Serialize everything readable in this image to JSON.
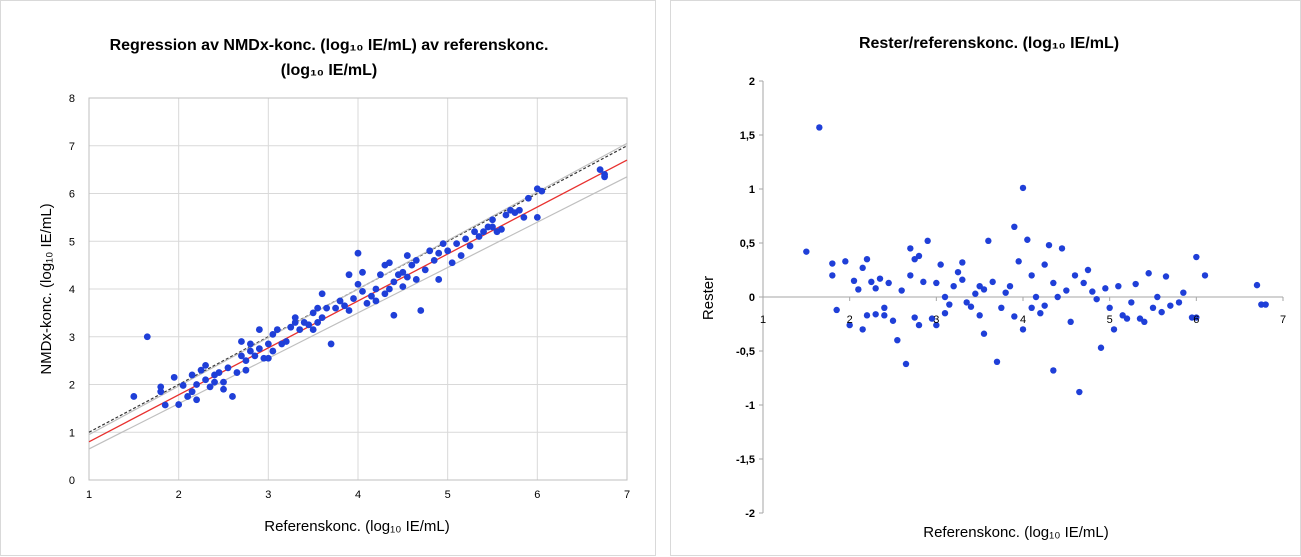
{
  "chart_data": [
    {
      "type": "scatter",
      "title": "Regression av NMDx-konc. (log₁₀ IE/mL) av referenskonc.",
      "title_line2": "(log₁₀ IE/mL)",
      "xlabel": "Referenskonc. (log₁₀ IE/mL)",
      "ylabel": "NMDx-konc. (log₁₀ IE/mL)",
      "xlim": [
        1,
        7
      ],
      "ylim": [
        0,
        8
      ],
      "xticks": [
        "1",
        "2",
        "3",
        "4",
        "5",
        "6",
        "7"
      ],
      "yticks": [
        "0",
        "1",
        "2",
        "3",
        "4",
        "5",
        "6",
        "7",
        "8"
      ],
      "grid": true,
      "point_color": "#1f3fd8",
      "lines": [
        {
          "kind": "identity-dashed",
          "color": "#333333",
          "points": [
            [
              1,
              1
            ],
            [
              7,
              7
            ]
          ]
        },
        {
          "kind": "upper-bound",
          "color": "#bfbfbf",
          "points": [
            [
              1,
              0.95
            ],
            [
              7,
              7.05
            ]
          ]
        },
        {
          "kind": "regression",
          "color": "#e8312f",
          "points": [
            [
              1,
              0.8
            ],
            [
              7,
              6.7
            ]
          ]
        },
        {
          "kind": "lower-bound",
          "color": "#bfbfbf",
          "points": [
            [
              1,
              0.65
            ],
            [
              7,
              6.35
            ]
          ]
        }
      ],
      "points": [
        [
          1.5,
          1.75
        ],
        [
          1.65,
          3.0
        ],
        [
          1.8,
          1.85
        ],
        [
          1.8,
          1.95
        ],
        [
          1.85,
          1.57
        ],
        [
          1.95,
          2.15
        ],
        [
          2.0,
          1.58
        ],
        [
          2.05,
          1.98
        ],
        [
          2.1,
          1.75
        ],
        [
          2.15,
          1.85
        ],
        [
          2.15,
          2.2
        ],
        [
          2.2,
          1.68
        ],
        [
          2.2,
          2.0
        ],
        [
          2.25,
          2.3
        ],
        [
          2.3,
          2.1
        ],
        [
          2.3,
          2.4
        ],
        [
          2.35,
          1.95
        ],
        [
          2.4,
          2.2
        ],
        [
          2.4,
          2.05
        ],
        [
          2.45,
          2.25
        ],
        [
          2.5,
          2.05
        ],
        [
          2.5,
          1.9
        ],
        [
          2.55,
          2.35
        ],
        [
          2.6,
          1.75
        ],
        [
          2.65,
          2.25
        ],
        [
          2.7,
          2.6
        ],
        [
          2.7,
          2.9
        ],
        [
          2.75,
          2.5
        ],
        [
          2.75,
          2.3
        ],
        [
          2.8,
          2.7
        ],
        [
          2.8,
          2.85
        ],
        [
          2.85,
          2.6
        ],
        [
          2.9,
          3.15
        ],
        [
          2.9,
          2.75
        ],
        [
          2.95,
          2.55
        ],
        [
          3.0,
          2.55
        ],
        [
          3.0,
          2.85
        ],
        [
          3.05,
          2.7
        ],
        [
          3.05,
          3.05
        ],
        [
          3.1,
          3.15
        ],
        [
          3.15,
          2.85
        ],
        [
          3.2,
          2.9
        ],
        [
          3.25,
          3.2
        ],
        [
          3.3,
          3.3
        ],
        [
          3.3,
          3.4
        ],
        [
          3.35,
          3.15
        ],
        [
          3.4,
          3.3
        ],
        [
          3.45,
          3.25
        ],
        [
          3.5,
          3.5
        ],
        [
          3.5,
          3.15
        ],
        [
          3.55,
          3.3
        ],
        [
          3.55,
          3.6
        ],
        [
          3.6,
          3.4
        ],
        [
          3.6,
          3.9
        ],
        [
          3.65,
          3.6
        ],
        [
          3.7,
          2.85
        ],
        [
          3.75,
          3.6
        ],
        [
          3.8,
          3.75
        ],
        [
          3.85,
          3.65
        ],
        [
          3.9,
          3.55
        ],
        [
          3.9,
          4.3
        ],
        [
          3.95,
          3.8
        ],
        [
          4.0,
          4.75
        ],
        [
          4.0,
          4.1
        ],
        [
          4.05,
          3.95
        ],
        [
          4.05,
          4.35
        ],
        [
          4.1,
          3.7
        ],
        [
          4.15,
          3.85
        ],
        [
          4.2,
          4.0
        ],
        [
          4.2,
          3.75
        ],
        [
          4.25,
          4.3
        ],
        [
          4.3,
          3.9
        ],
        [
          4.3,
          4.5
        ],
        [
          4.35,
          4.0
        ],
        [
          4.35,
          4.55
        ],
        [
          4.4,
          4.15
        ],
        [
          4.4,
          3.45
        ],
        [
          4.45,
          4.3
        ],
        [
          4.5,
          4.35
        ],
        [
          4.5,
          4.05
        ],
        [
          4.55,
          4.25
        ],
        [
          4.55,
          4.7
        ],
        [
          4.6,
          4.5
        ],
        [
          4.65,
          4.2
        ],
        [
          4.65,
          4.6
        ],
        [
          4.7,
          3.55
        ],
        [
          4.75,
          4.4
        ],
        [
          4.8,
          4.8
        ],
        [
          4.85,
          4.6
        ],
        [
          4.9,
          4.75
        ],
        [
          4.9,
          4.2
        ],
        [
          4.95,
          4.95
        ],
        [
          5.0,
          4.8
        ],
        [
          5.05,
          4.55
        ],
        [
          5.1,
          4.95
        ],
        [
          5.15,
          4.7
        ],
        [
          5.2,
          5.05
        ],
        [
          5.25,
          4.9
        ],
        [
          5.3,
          5.2
        ],
        [
          5.35,
          5.1
        ],
        [
          5.4,
          5.2
        ],
        [
          5.45,
          5.3
        ],
        [
          5.5,
          5.3
        ],
        [
          5.5,
          5.45
        ],
        [
          5.55,
          5.2
        ],
        [
          5.6,
          5.25
        ],
        [
          5.65,
          5.55
        ],
        [
          5.7,
          5.65
        ],
        [
          5.75,
          5.6
        ],
        [
          5.8,
          5.65
        ],
        [
          5.85,
          5.5
        ],
        [
          5.9,
          5.9
        ],
        [
          6.0,
          5.5
        ],
        [
          6.0,
          6.1
        ],
        [
          6.05,
          6.05
        ],
        [
          6.75,
          6.35
        ],
        [
          6.75,
          6.4
        ],
        [
          6.7,
          6.5
        ]
      ]
    },
    {
      "type": "scatter",
      "title": "Rester/referenskonc. (log₁₀ IE/mL)",
      "xlabel": "Referenskonc. (log₁₀ IE/mL)",
      "ylabel": "Rester",
      "xlim": [
        1,
        7
      ],
      "ylim": [
        -2,
        2
      ],
      "xticks": [
        "1",
        "2",
        "3",
        "4",
        "5",
        "6",
        "7"
      ],
      "yticks": [
        "-2",
        "-1,5",
        "-1",
        "-0,5",
        "0",
        "0,5",
        "1",
        "1,5",
        "2"
      ],
      "ytick_values": [
        -2,
        -1.5,
        -1,
        -0.5,
        0,
        0.5,
        1,
        1.5,
        2
      ],
      "grid": false,
      "point_color": "#1f3fd8",
      "points": [
        [
          1.5,
          0.42
        ],
        [
          1.65,
          1.57
        ],
        [
          1.8,
          0.31
        ],
        [
          1.8,
          0.2
        ],
        [
          1.85,
          -0.12
        ],
        [
          1.95,
          0.33
        ],
        [
          2.0,
          -0.26
        ],
        [
          2.05,
          0.15
        ],
        [
          2.1,
          0.07
        ],
        [
          2.15,
          -0.3
        ],
        [
          2.15,
          0.27
        ],
        [
          2.2,
          -0.17
        ],
        [
          2.2,
          0.35
        ],
        [
          2.25,
          0.14
        ],
        [
          2.3,
          -0.16
        ],
        [
          2.3,
          0.08
        ],
        [
          2.35,
          0.17
        ],
        [
          2.4,
          -0.1
        ],
        [
          2.4,
          -0.17
        ],
        [
          2.45,
          0.13
        ],
        [
          2.5,
          -0.22
        ],
        [
          2.55,
          -0.4
        ],
        [
          2.6,
          0.06
        ],
        [
          2.65,
          -0.62
        ],
        [
          2.7,
          0.45
        ],
        [
          2.7,
          0.2
        ],
        [
          2.75,
          -0.19
        ],
        [
          2.75,
          0.35
        ],
        [
          2.8,
          0.38
        ],
        [
          2.8,
          -0.26
        ],
        [
          2.85,
          0.14
        ],
        [
          2.9,
          0.52
        ],
        [
          2.95,
          -0.2
        ],
        [
          3.0,
          -0.26
        ],
        [
          3.0,
          0.13
        ],
        [
          3.05,
          0.3
        ],
        [
          3.1,
          -0.15
        ],
        [
          3.1,
          0.0
        ],
        [
          3.15,
          -0.07
        ],
        [
          3.2,
          0.1
        ],
        [
          3.25,
          0.23
        ],
        [
          3.3,
          0.32
        ],
        [
          3.3,
          0.16
        ],
        [
          3.35,
          -0.05
        ],
        [
          3.4,
          -0.09
        ],
        [
          3.45,
          0.03
        ],
        [
          3.5,
          0.1
        ],
        [
          3.5,
          -0.17
        ],
        [
          3.55,
          0.07
        ],
        [
          3.55,
          -0.34
        ],
        [
          3.6,
          0.52
        ],
        [
          3.65,
          0.14
        ],
        [
          3.7,
          -0.6
        ],
        [
          3.75,
          -0.1
        ],
        [
          3.8,
          0.04
        ],
        [
          3.85,
          0.1
        ],
        [
          3.9,
          0.65
        ],
        [
          3.9,
          -0.18
        ],
        [
          3.95,
          0.33
        ],
        [
          4.0,
          1.01
        ],
        [
          4.0,
          -0.3
        ],
        [
          4.05,
          0.53
        ],
        [
          4.1,
          0.2
        ],
        [
          4.1,
          -0.1
        ],
        [
          4.15,
          0.0
        ],
        [
          4.2,
          -0.15
        ],
        [
          4.25,
          0.3
        ],
        [
          4.25,
          -0.08
        ],
        [
          4.3,
          0.48
        ],
        [
          4.35,
          0.13
        ],
        [
          4.35,
          -0.68
        ],
        [
          4.4,
          0.0
        ],
        [
          4.45,
          0.45
        ],
        [
          4.5,
          0.06
        ],
        [
          4.55,
          -0.23
        ],
        [
          4.6,
          0.2
        ],
        [
          4.65,
          -0.88
        ],
        [
          4.7,
          0.13
        ],
        [
          4.75,
          0.25
        ],
        [
          4.8,
          0.05
        ],
        [
          4.85,
          -0.02
        ],
        [
          4.9,
          -0.47
        ],
        [
          4.95,
          0.08
        ],
        [
          5.0,
          -0.1
        ],
        [
          5.05,
          -0.3
        ],
        [
          5.1,
          0.1
        ],
        [
          5.15,
          -0.17
        ],
        [
          5.2,
          -0.2
        ],
        [
          5.25,
          -0.05
        ],
        [
          5.3,
          0.12
        ],
        [
          5.35,
          -0.2
        ],
        [
          5.4,
          -0.23
        ],
        [
          5.45,
          0.22
        ],
        [
          5.5,
          -0.1
        ],
        [
          5.55,
          0.0
        ],
        [
          5.6,
          -0.14
        ],
        [
          5.65,
          0.19
        ],
        [
          5.7,
          -0.08
        ],
        [
          5.8,
          -0.05
        ],
        [
          5.85,
          0.04
        ],
        [
          5.95,
          -0.19
        ],
        [
          6.0,
          -0.19
        ],
        [
          6.0,
          0.37
        ],
        [
          6.1,
          0.2
        ],
        [
          6.7,
          0.11
        ],
        [
          6.75,
          -0.07
        ],
        [
          6.8,
          -0.07
        ]
      ]
    }
  ]
}
